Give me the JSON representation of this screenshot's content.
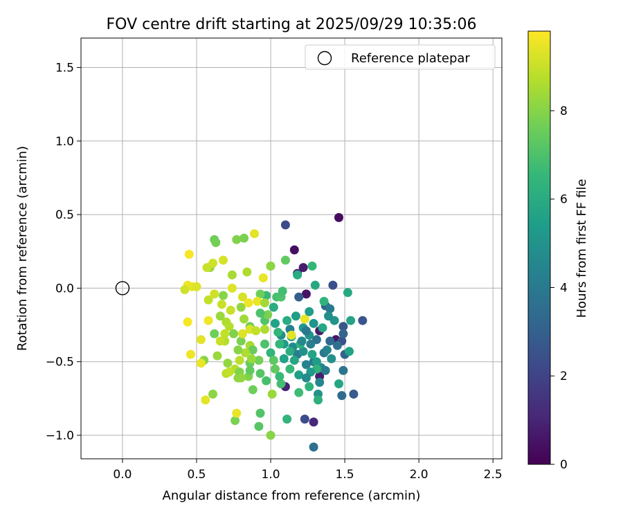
{
  "chart_data": {
    "type": "scatter",
    "title": "FOV centre drift starting at 2025/09/29 10:35:06",
    "xlabel": "Angular distance from reference (arcmin)",
    "ylabel": "Rotation from reference (arcmin)",
    "xlim": [
      -0.28,
      2.56
    ],
    "ylim": [
      -1.16,
      1.7
    ],
    "xticks": [
      0.0,
      0.5,
      1.0,
      1.5,
      2.0,
      2.5
    ],
    "xtick_labels": [
      "0.0",
      "0.5",
      "1.0",
      "1.5",
      "2.0",
      "2.5"
    ],
    "yticks": [
      -1.0,
      -0.5,
      0.0,
      0.5,
      1.0,
      1.5
    ],
    "ytick_labels": [
      "−1.0",
      "−0.5",
      "0.0",
      "0.5",
      "1.0",
      "1.5"
    ],
    "grid": true,
    "legend": {
      "position": "top-right",
      "entries": [
        {
          "label": "Reference platepar",
          "marker": "open-circle"
        }
      ]
    },
    "reference_point": {
      "x": 0.0,
      "y": 0.0
    },
    "colorbar": {
      "label": "Hours from first FF file",
      "range": [
        0,
        9.8
      ],
      "ticks": [
        0,
        2,
        4,
        6,
        8
      ],
      "tick_labels": [
        "0",
        "2",
        "4",
        "6",
        "8"
      ],
      "colormap": [
        "#440154",
        "#482878",
        "#3e4989",
        "#31688e",
        "#26828e",
        "#1f9e89",
        "#35b779",
        "#6ece58",
        "#b5de2b",
        "#fde725"
      ]
    },
    "points": [
      [
        1.46,
        0.48,
        0.3
      ],
      [
        1.16,
        0.26,
        0.4
      ],
      [
        1.24,
        -0.04,
        0.5
      ],
      [
        1.22,
        0.14,
        0.8
      ],
      [
        1.29,
        -0.91,
        1.1
      ],
      [
        1.44,
        -0.35,
        0.6
      ],
      [
        1.1,
        -0.67,
        0.9
      ],
      [
        1.33,
        -0.29,
        0.7
      ],
      [
        1.18,
        0.1,
        1.0
      ],
      [
        1.33,
        -0.6,
        0.8
      ],
      [
        1.1,
        0.43,
        2.2
      ],
      [
        1.42,
        0.02,
        2.4
      ],
      [
        1.62,
        -0.22,
        2.6
      ],
      [
        1.56,
        -0.72,
        2.8
      ],
      [
        1.48,
        -0.36,
        2.5
      ],
      [
        1.49,
        -0.26,
        2.7
      ],
      [
        1.23,
        -0.89,
        2.3
      ],
      [
        1.19,
        -0.06,
        2.9
      ],
      [
        1.37,
        -0.12,
        3.0
      ],
      [
        1.5,
        -0.45,
        3.1
      ],
      [
        1.49,
        -0.31,
        3.2
      ],
      [
        1.4,
        -0.36,
        3.3
      ],
      [
        1.29,
        -1.08,
        3.6
      ],
      [
        1.48,
        -0.73,
        3.4
      ],
      [
        1.31,
        -0.35,
        3.7
      ],
      [
        1.29,
        -0.5,
        3.8
      ],
      [
        1.36,
        -0.44,
        3.9
      ],
      [
        1.4,
        -0.14,
        4.0
      ],
      [
        1.27,
        -0.38,
        4.2
      ],
      [
        1.49,
        -0.56,
        3.8
      ],
      [
        1.18,
        -0.45,
        4.1
      ],
      [
        1.13,
        -0.28,
        4.3
      ],
      [
        1.24,
        -0.52,
        4.4
      ],
      [
        1.33,
        -0.64,
        4.5
      ],
      [
        1.34,
        -0.54,
        4.6
      ],
      [
        1.15,
        -0.4,
        4.7
      ],
      [
        1.07,
        -0.32,
        4.8
      ],
      [
        1.22,
        -0.43,
        4.9
      ],
      [
        1.26,
        -0.32,
        5.0
      ],
      [
        1.43,
        -0.22,
        5.1
      ],
      [
        1.32,
        -0.72,
        5.0
      ],
      [
        1.22,
        -0.27,
        5.2
      ],
      [
        1.09,
        -0.38,
        5.3
      ],
      [
        1.31,
        -0.5,
        5.4
      ],
      [
        1.19,
        -0.59,
        5.5
      ],
      [
        1.03,
        -0.24,
        5.6
      ],
      [
        1.17,
        -0.19,
        5.4
      ],
      [
        1.53,
        -0.43,
        5.6
      ],
      [
        1.54,
        -0.22,
        5.7
      ],
      [
        1.46,
        -0.65,
        5.8
      ],
      [
        1.52,
        -0.03,
        5.9
      ],
      [
        1.35,
        -0.27,
        5.8
      ],
      [
        1.28,
        -0.45,
        5.7
      ],
      [
        1.3,
        0.02,
        5.9
      ],
      [
        1.18,
        0.09,
        6.0
      ],
      [
        1.11,
        -0.22,
        6.0
      ],
      [
        1.13,
        -0.43,
        6.1
      ],
      [
        1.2,
        -0.38,
        6.2
      ],
      [
        1.31,
        -0.55,
        6.3
      ],
      [
        1.26,
        -0.67,
        6.3
      ],
      [
        1.06,
        -0.38,
        6.5
      ],
      [
        1.0,
        -0.44,
        6.4
      ],
      [
        1.13,
        -0.55,
        6.6
      ],
      [
        1.07,
        -0.65,
        6.8
      ],
      [
        1.19,
        -0.71,
        6.7
      ],
      [
        1.28,
        0.15,
        6.5
      ],
      [
        1.11,
        -0.89,
        6.4
      ],
      [
        1.32,
        -0.76,
        6.2
      ],
      [
        1.36,
        -0.09,
        6.3
      ],
      [
        0.97,
        -0.05,
        6.6
      ],
      [
        1.04,
        -0.06,
        6.9
      ],
      [
        1.07,
        -0.06,
        7.0
      ],
      [
        0.96,
        -0.22,
        7.1
      ],
      [
        1.02,
        -0.49,
        7.3
      ],
      [
        0.93,
        -0.85,
        7.1
      ],
      [
        0.92,
        -0.94,
        7.2
      ],
      [
        1.1,
        0.19,
        7.4
      ],
      [
        1.0,
        0.15,
        7.5
      ],
      [
        0.93,
        -0.04,
        7.6
      ],
      [
        0.86,
        -0.26,
        7.7
      ],
      [
        0.8,
        -0.36,
        7.8
      ],
      [
        0.86,
        -0.51,
        7.5
      ],
      [
        0.85,
        -0.6,
        7.9
      ],
      [
        0.88,
        -0.69,
        7.6
      ],
      [
        0.92,
        -0.49,
        7.7
      ],
      [
        1.0,
        -1.0,
        8.0
      ],
      [
        0.76,
        -0.9,
        7.8
      ],
      [
        0.78,
        -0.61,
        8.1
      ],
      [
        0.71,
        -0.51,
        8.2
      ],
      [
        0.75,
        -0.31,
        7.9
      ],
      [
        0.68,
        -0.05,
        8.0
      ],
      [
        0.62,
        0.33,
        7.6
      ],
      [
        0.63,
        0.31,
        7.7
      ],
      [
        0.82,
        0.34,
        7.8
      ],
      [
        0.77,
        0.33,
        7.9
      ],
      [
        0.59,
        0.14,
        8.2
      ],
      [
        0.64,
        -0.46,
        8.3
      ],
      [
        0.61,
        -0.72,
        8.1
      ],
      [
        0.55,
        -0.49,
        8.0
      ],
      [
        0.8,
        -0.13,
        8.2
      ],
      [
        0.82,
        -0.21,
        8.4
      ],
      [
        0.86,
        -0.39,
        8.5
      ],
      [
        0.87,
        -0.48,
        8.3
      ],
      [
        0.84,
        0.11,
        8.6
      ],
      [
        0.74,
        0.09,
        8.5
      ],
      [
        0.7,
        -0.23,
        8.6
      ],
      [
        0.76,
        -0.55,
        8.7
      ],
      [
        0.7,
        -0.58,
        8.8
      ],
      [
        0.69,
        -0.36,
        8.7
      ],
      [
        0.58,
        -0.08,
        8.9
      ],
      [
        0.57,
        0.14,
        9.0
      ],
      [
        0.61,
        0.17,
        9.1
      ],
      [
        0.67,
        -0.11,
        9.0
      ],
      [
        0.68,
        0.19,
        9.2
      ],
      [
        0.77,
        -0.85,
        9.5
      ],
      [
        0.89,
        0.37,
        9.4
      ],
      [
        0.95,
        0.07,
        9.5
      ],
      [
        0.86,
        -0.28,
        9.3
      ],
      [
        0.81,
        -0.06,
        9.2
      ],
      [
        0.85,
        -0.1,
        9.6
      ],
      [
        0.91,
        -0.09,
        9.5
      ],
      [
        0.74,
        0.0,
        9.3
      ],
      [
        0.62,
        -0.04,
        9.1
      ],
      [
        0.53,
        -0.35,
        9.4
      ],
      [
        0.58,
        -0.22,
        9.6
      ],
      [
        0.44,
        -0.23,
        9.7
      ],
      [
        0.46,
        -0.45,
        9.6
      ],
      [
        0.53,
        -0.51,
        9.5
      ],
      [
        0.56,
        -0.76,
        9.4
      ],
      [
        0.45,
        0.23,
        9.7
      ],
      [
        0.44,
        0.02,
        9.6
      ],
      [
        0.47,
        0.01,
        9.5
      ],
      [
        0.5,
        0.01,
        9.3
      ],
      [
        0.42,
        -0.01,
        9.1
      ],
      [
        0.73,
        -0.15,
        9.0
      ],
      [
        0.69,
        -0.31,
        8.9
      ],
      [
        0.72,
        -0.57,
        8.9
      ],
      [
        0.79,
        -0.49,
        8.8
      ],
      [
        0.96,
        -0.28,
        8.6
      ],
      [
        0.96,
        -0.1,
        8.4
      ],
      [
        1.0,
        0.15,
        8.1
      ],
      [
        0.98,
        -0.18,
        7.8
      ],
      [
        1.03,
        -0.55,
        7.4
      ],
      [
        1.01,
        -0.72,
        8.3
      ],
      [
        0.96,
        -0.38,
        7.0
      ],
      [
        1.08,
        -0.02,
        6.8
      ],
      [
        1.14,
        -0.33,
        5.5
      ],
      [
        1.21,
        -0.36,
        4.6
      ],
      [
        1.24,
        -0.29,
        3.9
      ],
      [
        1.38,
        -0.42,
        4.4
      ],
      [
        1.41,
        -0.48,
        4.9
      ],
      [
        1.27,
        -0.57,
        5.3
      ],
      [
        1.16,
        -0.49,
        5.8
      ],
      [
        1.06,
        -0.6,
        6.6
      ],
      [
        0.93,
        -0.58,
        7.2
      ],
      [
        0.88,
        -0.42,
        7.5
      ],
      [
        0.79,
        -0.57,
        7.9
      ],
      [
        0.83,
        -0.44,
        8.6
      ],
      [
        0.9,
        -0.29,
        8.9
      ],
      [
        0.81,
        -0.31,
        9.3
      ],
      [
        1.23,
        -0.21,
        9.5
      ],
      [
        1.14,
        -0.32,
        9.4
      ],
      [
        0.66,
        -0.19,
        8.3
      ],
      [
        0.62,
        -0.31,
        7.6
      ],
      [
        0.93,
        -0.17,
        7.0
      ],
      [
        1.02,
        -0.13,
        6.1
      ],
      [
        1.26,
        -0.16,
        5.4
      ],
      [
        1.39,
        -0.19,
        4.8
      ],
      [
        1.45,
        -0.39,
        3.6
      ],
      [
        1.37,
        -0.56,
        4.1
      ],
      [
        1.24,
        -0.61,
        4.7
      ],
      [
        1.09,
        -0.48,
        5.6
      ],
      [
        0.97,
        -0.63,
        6.9
      ],
      [
        0.86,
        -0.56,
        7.4
      ],
      [
        0.78,
        -0.42,
        8.0
      ],
      [
        0.72,
        -0.26,
        8.7
      ],
      [
        0.66,
        -0.36,
        9.0
      ],
      [
        0.8,
        -0.61,
        8.2
      ],
      [
        1.05,
        -0.3,
        6.4
      ],
      [
        1.29,
        -0.24,
        5.1
      ]
    ]
  }
}
